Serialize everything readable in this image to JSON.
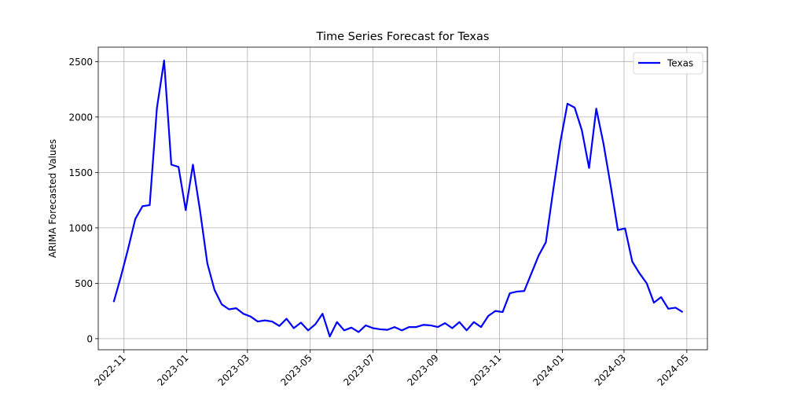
{
  "chart_data": {
    "type": "line",
    "title": "Time Series Forecast for Texas",
    "xlabel": "",
    "ylabel": "ARIMA Forecasted Values",
    "grid": true,
    "legend_placement": "top-right",
    "ylim": [
      -100,
      2630
    ],
    "xlim": [
      "2022-10-07",
      "2024-05-21"
    ],
    "yticks": [
      0,
      500,
      1000,
      1500,
      2000,
      2500
    ],
    "xticks": [
      "2022-11",
      "2023-01",
      "2023-03",
      "2023-05",
      "2023-07",
      "2023-09",
      "2023-11",
      "2024-01",
      "2024-03",
      "2024-05"
    ],
    "series": [
      {
        "name": "Texas",
        "color": "#0000ff",
        "x": [
          "2022-10-22",
          "2022-10-29",
          "2022-11-05",
          "2022-11-12",
          "2022-11-19",
          "2022-11-26",
          "2022-12-03",
          "2022-12-10",
          "2022-12-17",
          "2022-12-24",
          "2022-12-31",
          "2023-01-07",
          "2023-01-14",
          "2023-01-21",
          "2023-01-28",
          "2023-02-04",
          "2023-02-11",
          "2023-02-18",
          "2023-02-25",
          "2023-03-04",
          "2023-03-11",
          "2023-03-18",
          "2023-03-25",
          "2023-04-01",
          "2023-04-08",
          "2023-04-15",
          "2023-04-22",
          "2023-04-29",
          "2023-05-06",
          "2023-05-13",
          "2023-05-20",
          "2023-05-27",
          "2023-06-03",
          "2023-06-10",
          "2023-06-17",
          "2023-06-24",
          "2023-07-01",
          "2023-07-08",
          "2023-07-15",
          "2023-07-22",
          "2023-07-29",
          "2023-08-05",
          "2023-08-12",
          "2023-08-19",
          "2023-08-26",
          "2023-09-02",
          "2023-09-09",
          "2023-09-16",
          "2023-09-23",
          "2023-09-30",
          "2023-10-07",
          "2023-10-14",
          "2023-10-21",
          "2023-10-28",
          "2023-11-04",
          "2023-11-11",
          "2023-11-18",
          "2023-11-25",
          "2023-12-02",
          "2023-12-09",
          "2023-12-16",
          "2023-12-23",
          "2023-12-30",
          "2024-01-06",
          "2024-01-13",
          "2024-01-20",
          "2024-01-27",
          "2024-02-03",
          "2024-02-10",
          "2024-02-17",
          "2024-02-24",
          "2024-03-02",
          "2024-03-09",
          "2024-03-16",
          "2024-03-23",
          "2024-03-30",
          "2024-04-06",
          "2024-04-13",
          "2024-04-20",
          "2024-04-27"
        ],
        "values": [
          330,
          560,
          810,
          1080,
          1195,
          1205,
          2080,
          2510,
          1570,
          1550,
          1160,
          1570,
          1150,
          680,
          440,
          310,
          265,
          275,
          225,
          200,
          155,
          165,
          155,
          115,
          180,
          95,
          145,
          75,
          130,
          225,
          20,
          150,
          75,
          100,
          60,
          120,
          95,
          85,
          80,
          105,
          75,
          105,
          105,
          125,
          120,
          105,
          140,
          95,
          150,
          75,
          150,
          105,
          205,
          250,
          240,
          410,
          425,
          430,
          590,
          750,
          870,
          1330,
          1770,
          2120,
          2085,
          1880,
          1540,
          2075,
          1760,
          1380,
          980,
          995,
          695,
          590,
          500,
          325,
          375,
          270,
          280,
          240
        ]
      }
    ]
  }
}
